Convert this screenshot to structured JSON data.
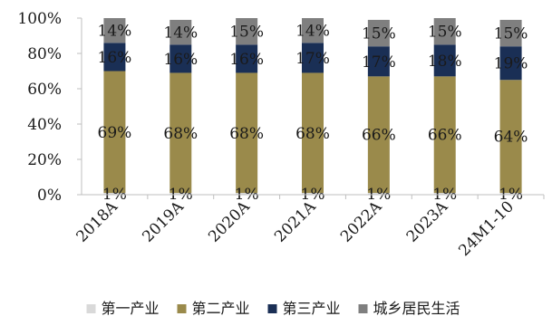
{
  "chart_data": {
    "type": "bar",
    "stacked": true,
    "percent": true,
    "categories": [
      "2018A",
      "2019A",
      "2020A",
      "2021A",
      "2022A",
      "2023A",
      "24M1-10"
    ],
    "series": [
      {
        "name": "第一产业",
        "color": "#d9d9d9",
        "values": [
          1,
          1,
          1,
          1,
          1,
          1,
          1
        ],
        "labels": [
          "1%",
          "1%",
          "1%",
          "1%",
          "1%",
          "1%",
          "1%"
        ]
      },
      {
        "name": "第二产业",
        "color": "#9a8a4b",
        "values": [
          69,
          68,
          68,
          68,
          66,
          66,
          64
        ],
        "labels": [
          "69%",
          "68%",
          "68%",
          "68%",
          "66%",
          "66%",
          "64%"
        ]
      },
      {
        "name": "第三产业",
        "color": "#1a2f55",
        "values": [
          16,
          16,
          16,
          17,
          17,
          18,
          19
        ],
        "labels": [
          "16%",
          "16%",
          "16%",
          "17%",
          "17%",
          "18%",
          "19%"
        ]
      },
      {
        "name": "城乡居民生活",
        "color": "#7f7f7f",
        "values": [
          14,
          14,
          15,
          14,
          15,
          15,
          15
        ],
        "labels": [
          "14%",
          "14%",
          "15%",
          "14%",
          "15%",
          "15%",
          "15%"
        ]
      }
    ],
    "ylim": [
      0,
      100
    ],
    "yticks": [
      "0%",
      "20%",
      "40%",
      "60%",
      "80%",
      "100%"
    ],
    "legend_position": "bottom",
    "grid": false
  }
}
